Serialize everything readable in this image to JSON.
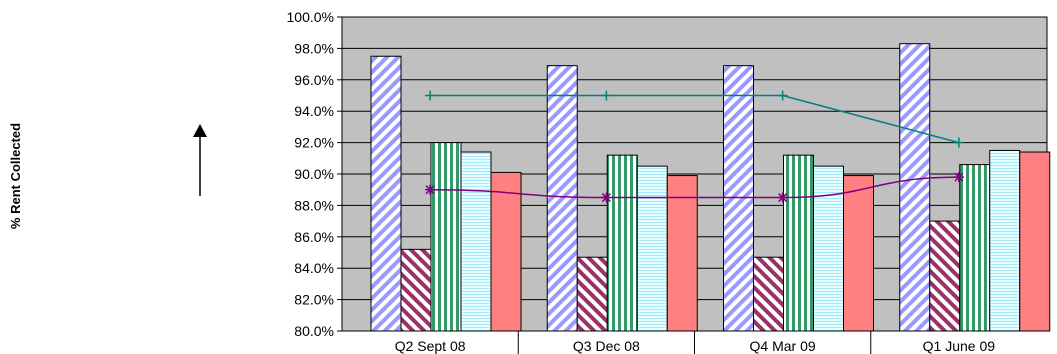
{
  "chart_data": {
    "type": "bar",
    "title": "",
    "xlabel": "",
    "ylabel": "% Rent Collected",
    "ylim": [
      80,
      100
    ],
    "ytick_step": 2,
    "ytick_format": "percent_1dp",
    "grid": true,
    "legend": "none",
    "categories": [
      "Q2 Sept 08",
      "Q3 Dec 08",
      "Q4 Mar 09",
      "Q1 June 09"
    ],
    "series": [
      {
        "type": "bar",
        "pattern": "diagonal-stripes",
        "color": "#9999ff",
        "values": [
          97.5,
          96.9,
          96.9,
          98.3
        ]
      },
      {
        "type": "bar",
        "pattern": "diagonal-stripes",
        "color": "#993366",
        "values": [
          85.2,
          84.7,
          84.7,
          87.0
        ]
      },
      {
        "type": "bar",
        "pattern": "vertical-stripes",
        "color": "#339966",
        "values": [
          92.0,
          91.2,
          91.2,
          90.6
        ]
      },
      {
        "type": "bar",
        "pattern": "horizontal-lines",
        "color": "#ccffff",
        "values": [
          91.4,
          90.5,
          90.5,
          91.5
        ]
      },
      {
        "type": "bar",
        "pattern": "solid",
        "color": "#ff8080",
        "values": [
          90.1,
          89.9,
          89.9,
          91.4
        ]
      },
      {
        "type": "line",
        "marker": "plus",
        "color": "#008080",
        "values": [
          95.0,
          95.0,
          95.0,
          92.0
        ]
      },
      {
        "type": "line",
        "marker": "star",
        "color": "#800080",
        "values": [
          89.0,
          88.5,
          88.5,
          89.8
        ]
      }
    ]
  },
  "colors": {
    "plot_background": "#c0c0c0",
    "gridline": "#000000"
  },
  "arrow_icon": "up-arrow-icon"
}
